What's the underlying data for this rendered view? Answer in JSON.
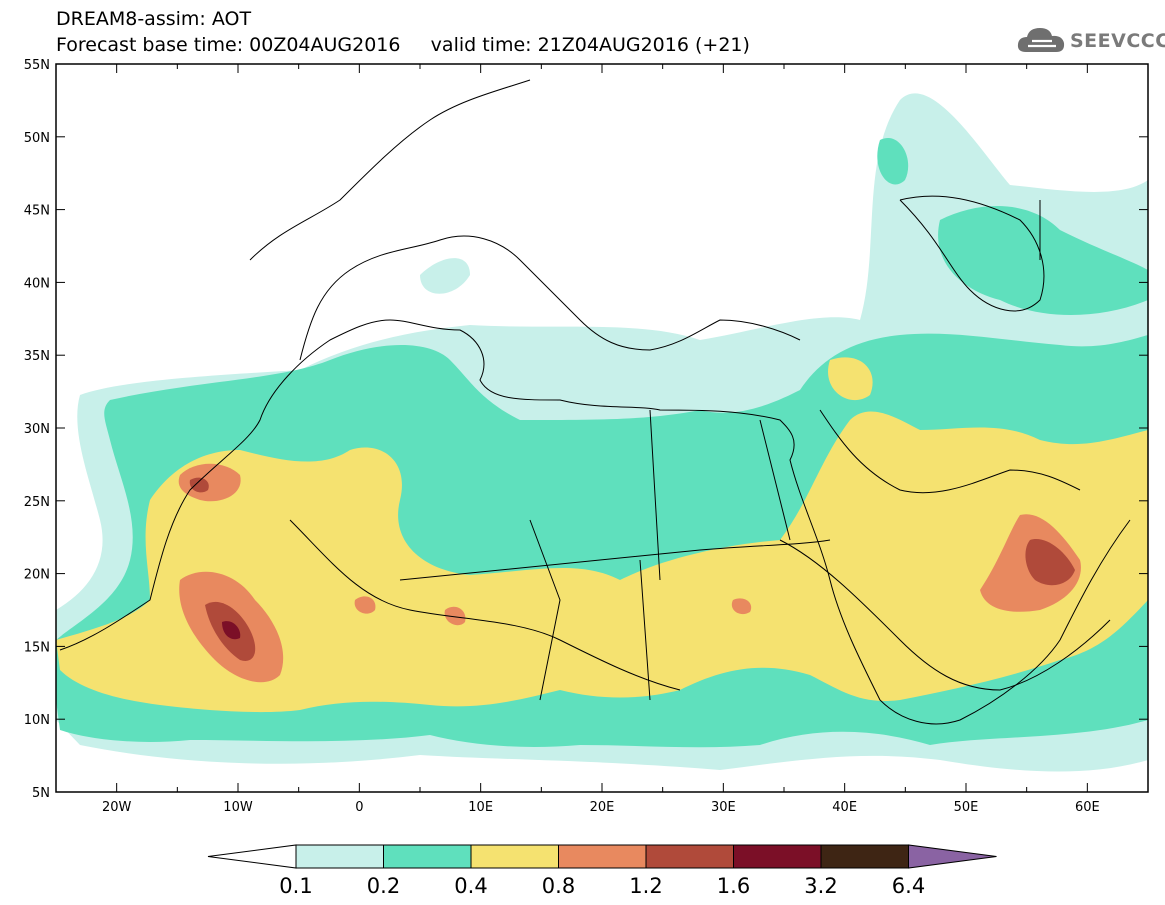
{
  "title": {
    "line1": "DREAM8-assim: AOT",
    "line2": "Forecast base time: 00Z04AUG2016     valid time: 21Z04AUG2016 (+21)"
  },
  "logo": {
    "text": "SEEVCCC",
    "icon": "cloud-icon"
  },
  "map": {
    "lon_range": [
      -25,
      65
    ],
    "lat_range": [
      5,
      55
    ],
    "x_ticks": [
      "20W",
      "10W",
      "0",
      "10E",
      "20E",
      "30E",
      "40E",
      "50E",
      "60E"
    ],
    "y_ticks": [
      "55N",
      "50N",
      "45N",
      "40N",
      "35N",
      "30N",
      "25N",
      "20N",
      "15N",
      "10N",
      "5N"
    ]
  },
  "colorbar": {
    "levels": [
      "0.1",
      "0.2",
      "0.4",
      "0.8",
      "1.2",
      "1.6",
      "3.2",
      "6.4"
    ],
    "colors": [
      "#ffffff",
      "#c8f0ea",
      "#5fe0bd",
      "#f5e270",
      "#e8895f",
      "#b04a3a",
      "#7b0f27",
      "#3e2514",
      "#8a63a3"
    ]
  }
}
